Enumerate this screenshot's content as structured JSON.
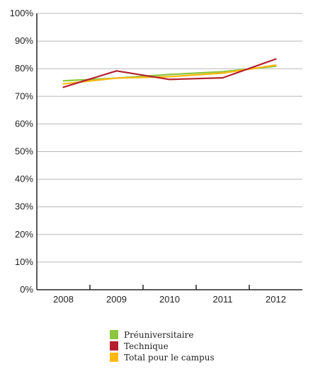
{
  "chart_data": {
    "type": "line",
    "categories": [
      "2008",
      "2009",
      "2010",
      "2011",
      "2012"
    ],
    "ylim": [
      0,
      100
    ],
    "yticks": [
      "0%",
      "10%",
      "20%",
      "30%",
      "40%",
      "50%",
      "60%",
      "70%",
      "80%",
      "90%",
      "100%"
    ],
    "grid": true,
    "legend_position": "bottom-center",
    "series": [
      {
        "name": "Préuniversitaire",
        "color": "#8dc63f",
        "values": [
          75.6,
          76.6,
          77.9,
          78.9,
          80.9
        ]
      },
      {
        "name": "Technique",
        "color": "#b5202e",
        "values": [
          73.3,
          79.2,
          76.1,
          76.7,
          83.5
        ]
      },
      {
        "name": "Total pour le campus",
        "color": "#fdb813",
        "values": [
          74.5,
          76.6,
          77.1,
          78.4,
          81.3
        ]
      }
    ]
  }
}
